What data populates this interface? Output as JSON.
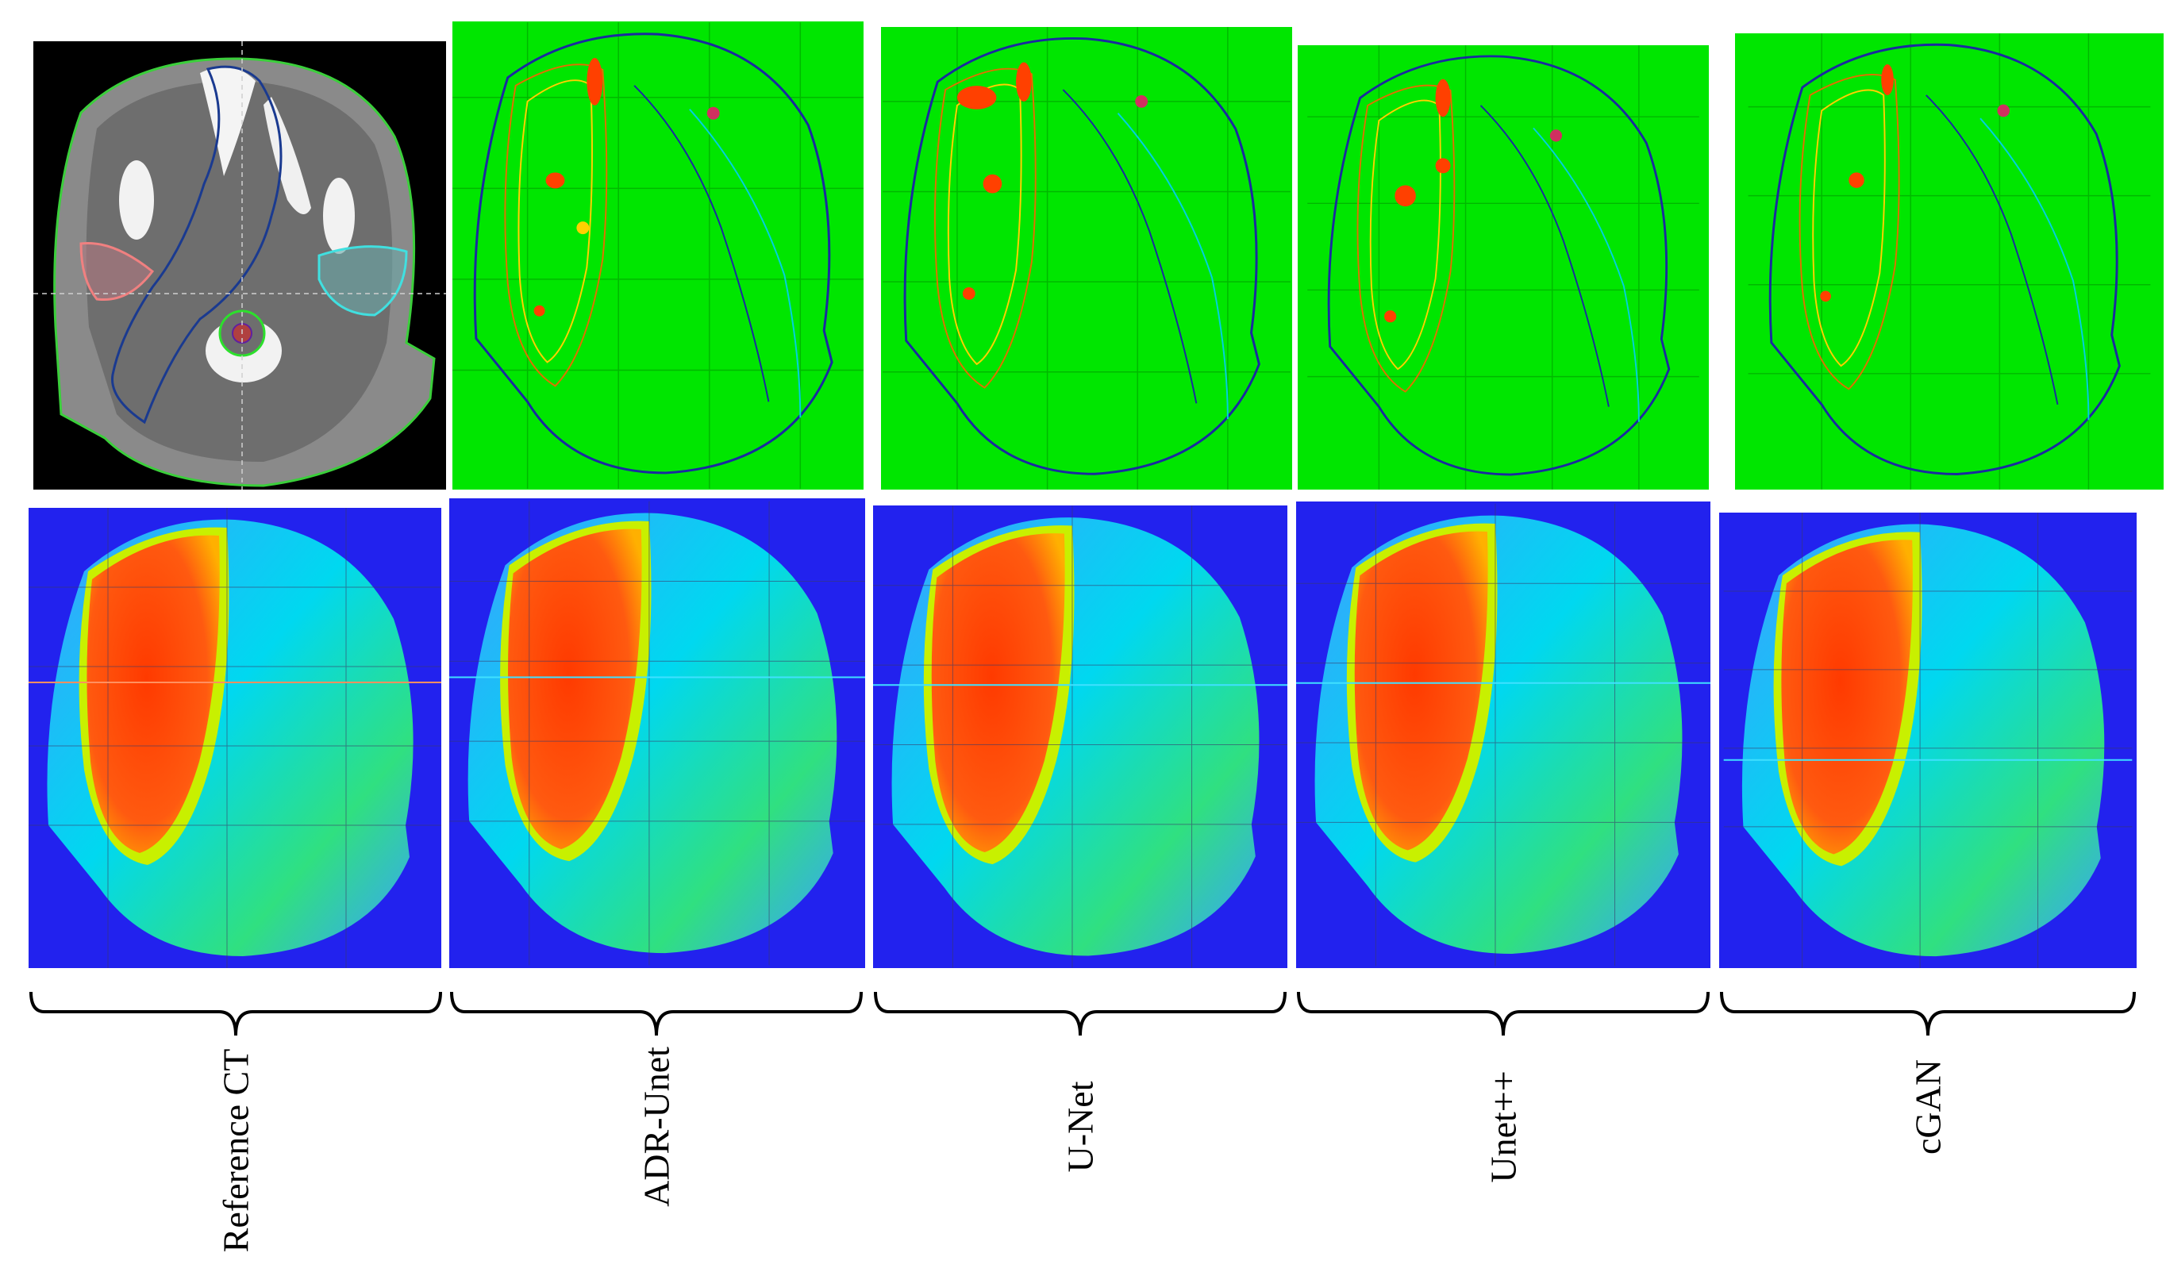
{
  "columns": [
    {
      "label": "Reference  CT"
    },
    {
      "label": "ADR-Unet"
    },
    {
      "label": "U-Net"
    },
    {
      "label": "Unet++"
    },
    {
      "label": "cGAN"
    }
  ],
  "colors": {
    "ct_background": "#000000",
    "dose_map_background": "#00e600",
    "dose_colormap_background": "#2222ee",
    "hot_region": "#ff4000",
    "brace": "#000000"
  }
}
